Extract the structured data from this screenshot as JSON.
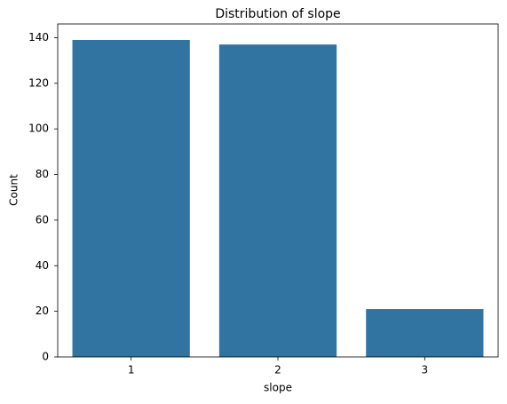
{
  "chart_data": {
    "type": "bar",
    "title": "Distribution of slope",
    "x_label": "slope",
    "y_label": "Count",
    "categories": [
      "1",
      "2",
      "3"
    ],
    "values": [
      139,
      137,
      21
    ],
    "color": "#3274a1",
    "ylim": [
      0,
      146
    ],
    "yticks": [
      0,
      20,
      40,
      60,
      80,
      100,
      120,
      140
    ],
    "grid": false
  }
}
